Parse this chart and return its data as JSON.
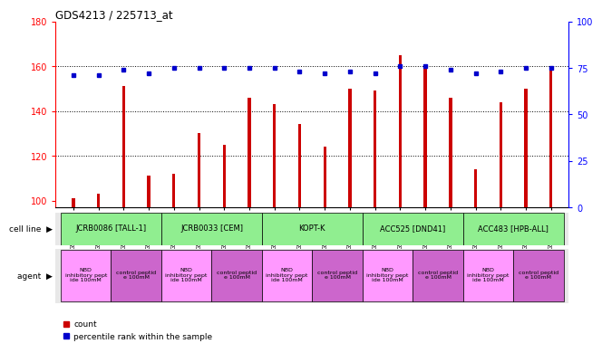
{
  "title": "GDS4213 / 225713_at",
  "samples": [
    "GSM518496",
    "GSM518497",
    "GSM518494",
    "GSM518495",
    "GSM542395",
    "GSM542396",
    "GSM542393",
    "GSM542394",
    "GSM542399",
    "GSM542400",
    "GSM542397",
    "GSM542398",
    "GSM542403",
    "GSM542404",
    "GSM542401",
    "GSM542402",
    "GSM542407",
    "GSM542408",
    "GSM542405",
    "GSM542406"
  ],
  "counts": [
    101,
    103,
    151,
    111,
    112,
    130,
    125,
    146,
    143,
    134,
    124,
    150,
    149,
    165,
    160,
    146,
    114,
    144,
    150,
    160
  ],
  "percentiles": [
    71,
    71,
    74,
    72,
    75,
    75,
    75,
    75,
    75,
    73,
    72,
    73,
    72,
    76,
    76,
    74,
    72,
    73,
    75,
    75
  ],
  "cell_lines": [
    {
      "label": "JCRB0086 [TALL-1]",
      "start": 0,
      "end": 3,
      "color": "#90EE90"
    },
    {
      "label": "JCRB0033 [CEM]",
      "start": 4,
      "end": 7,
      "color": "#90EE90"
    },
    {
      "label": "KOPT-K",
      "start": 8,
      "end": 11,
      "color": "#90EE90"
    },
    {
      "label": "ACC525 [DND41]",
      "start": 12,
      "end": 15,
      "color": "#90EE90"
    },
    {
      "label": "ACC483 [HPB-ALL]",
      "start": 16,
      "end": 19,
      "color": "#90EE90"
    }
  ],
  "agents": [
    {
      "label": "NBD\ninhibitory pept\nide 100mM",
      "start": 0,
      "end": 1,
      "color": "#FF99FF"
    },
    {
      "label": "control peptid\ne 100mM",
      "start": 2,
      "end": 3,
      "color": "#CC66CC"
    },
    {
      "label": "NBD\ninhibitory pept\nide 100mM",
      "start": 4,
      "end": 5,
      "color": "#FF99FF"
    },
    {
      "label": "control peptid\ne 100mM",
      "start": 6,
      "end": 7,
      "color": "#CC66CC"
    },
    {
      "label": "NBD\ninhibitory pept\nide 100mM",
      "start": 8,
      "end": 9,
      "color": "#FF99FF"
    },
    {
      "label": "control peptid\ne 100mM",
      "start": 10,
      "end": 11,
      "color": "#CC66CC"
    },
    {
      "label": "NBD\ninhibitory pept\nide 100mM",
      "start": 12,
      "end": 13,
      "color": "#FF99FF"
    },
    {
      "label": "control peptid\ne 100mM",
      "start": 14,
      "end": 15,
      "color": "#CC66CC"
    },
    {
      "label": "NBD\ninhibitory pept\nide 100mM",
      "start": 16,
      "end": 17,
      "color": "#FF99FF"
    },
    {
      "label": "control peptid\ne 100mM",
      "start": 18,
      "end": 19,
      "color": "#CC66CC"
    }
  ],
  "ylim_left": [
    97,
    180
  ],
  "ylim_right": [
    0,
    100
  ],
  "yticks_left": [
    100,
    120,
    140,
    160,
    180
  ],
  "yticks_right": [
    0,
    25,
    50,
    75,
    100
  ],
  "bar_color": "#CC0000",
  "dot_color": "#0000CC",
  "background_color": "#FFFFFF",
  "plot_bg_color": "#FFFFFF",
  "grid_lines": [
    120,
    140,
    160
  ]
}
